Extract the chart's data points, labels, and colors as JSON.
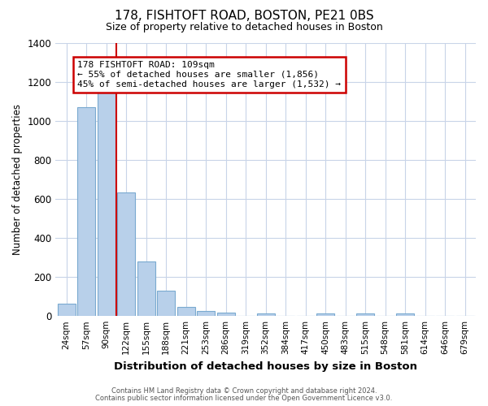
{
  "title": "178, FISHTOFT ROAD, BOSTON, PE21 0BS",
  "subtitle": "Size of property relative to detached houses in Boston",
  "xlabel": "Distribution of detached houses by size in Boston",
  "ylabel": "Number of detached properties",
  "bar_labels": [
    "24sqm",
    "57sqm",
    "90sqm",
    "122sqm",
    "155sqm",
    "188sqm",
    "221sqm",
    "253sqm",
    "286sqm",
    "319sqm",
    "352sqm",
    "384sqm",
    "417sqm",
    "450sqm",
    "483sqm",
    "515sqm",
    "548sqm",
    "581sqm",
    "614sqm",
    "646sqm",
    "679sqm"
  ],
  "bar_values": [
    63,
    1068,
    1155,
    632,
    280,
    130,
    46,
    25,
    18,
    0,
    14,
    0,
    0,
    14,
    0,
    14,
    0,
    14,
    0,
    0,
    0
  ],
  "bar_color": "#b8d0ea",
  "bar_edgecolor": "#7aaad0",
  "vline_color": "#cc0000",
  "annotation_line1": "178 FISHTOFT ROAD: 109sqm",
  "annotation_line2": "← 55% of detached houses are smaller (1,856)",
  "annotation_line3": "45% of semi-detached houses are larger (1,532) →",
  "annotation_box_facecolor": "white",
  "annotation_box_edgecolor": "#cc0000",
  "ylim": [
    0,
    1400
  ],
  "yticks": [
    0,
    200,
    400,
    600,
    800,
    1000,
    1200,
    1400
  ],
  "grid_color": "#c8d4e8",
  "bg_color": "#ffffff",
  "footnote1": "Contains HM Land Registry data © Crown copyright and database right 2024.",
  "footnote2": "Contains public sector information licensed under the Open Government Licence v3.0."
}
